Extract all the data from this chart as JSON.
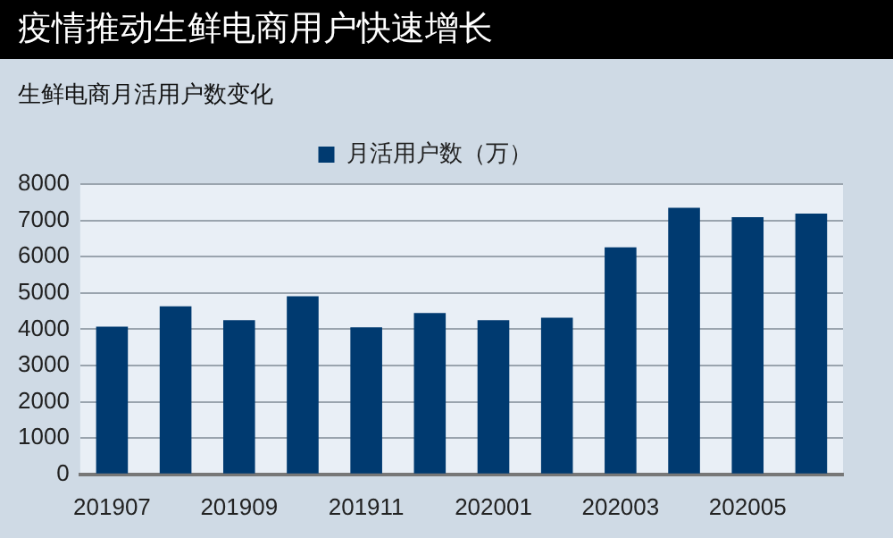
{
  "chart_data": {
    "type": "bar",
    "title": "疫情推动生鲜电商用户快速增长",
    "subtitle": "生鲜电商月活用户数变化",
    "categories": [
      "201907",
      null,
      "201909",
      null,
      "201911",
      null,
      "202001",
      null,
      "202003",
      null,
      "202005",
      null
    ],
    "series": [
      {
        "name": "月活用户数（万）",
        "color": "#003a70",
        "values": [
          4070,
          4630,
          4250,
          4910,
          4050,
          4450,
          4250,
          4320,
          6260,
          7350,
          7090,
          7190
        ]
      }
    ],
    "ylim": [
      0,
      8000
    ],
    "yticks": [
      0,
      1000,
      2000,
      3000,
      4000,
      5000,
      6000,
      7000,
      8000
    ],
    "grid": "y",
    "legend": "top"
  }
}
